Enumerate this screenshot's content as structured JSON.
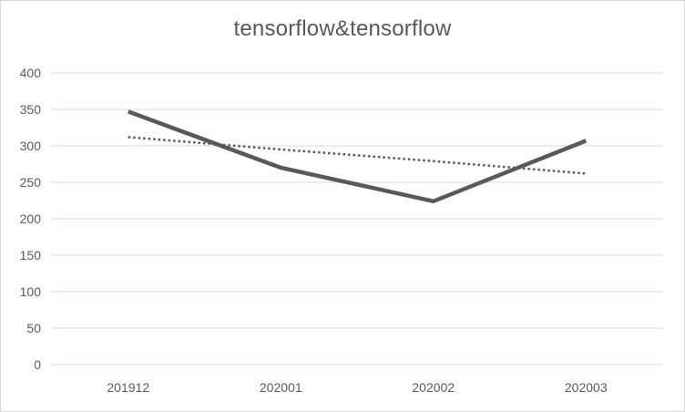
{
  "chart_data": {
    "type": "line",
    "title": "tensorflow&tensorflow",
    "xlabel": "",
    "ylabel": "",
    "categories": [
      "201912",
      "202001",
      "202002",
      "202003"
    ],
    "series": [
      {
        "values": [
          347,
          270,
          224,
          307
        ],
        "color": "#595959",
        "style": "solid"
      }
    ],
    "trendline": {
      "type": "linear",
      "style": "dotted",
      "color": "#595959",
      "values": [
        312,
        295,
        279,
        262
      ]
    },
    "ylim": [
      0,
      400
    ],
    "yticks": [
      0,
      50,
      100,
      150,
      200,
      250,
      300,
      350,
      400
    ],
    "grid": true,
    "legend": "none"
  }
}
